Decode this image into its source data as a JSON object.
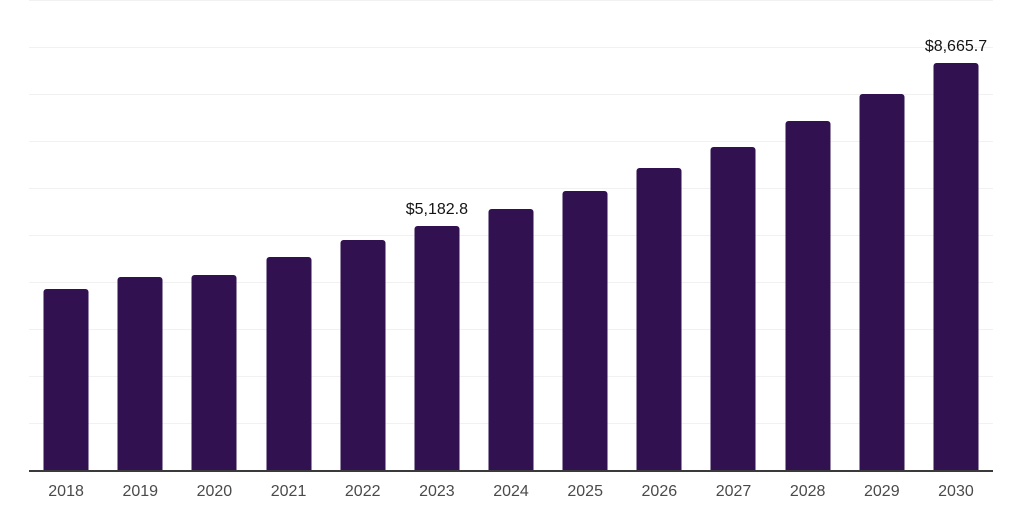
{
  "chart_data": {
    "type": "bar",
    "title": "",
    "xlabel": "",
    "ylabel": "",
    "categories": [
      "2018",
      "2019",
      "2020",
      "2021",
      "2022",
      "2023",
      "2024",
      "2025",
      "2026",
      "2027",
      "2028",
      "2029",
      "2030"
    ],
    "values": [
      3850,
      4100,
      4145,
      4525,
      4885,
      5182.8,
      5560,
      5940,
      6425,
      6870,
      7420,
      8010,
      8665.7
    ],
    "bar_labels": {
      "2023": "$5,182.8",
      "2030": "$8,665.7"
    },
    "ylim": [
      0,
      10000
    ],
    "gridline_step": 1000,
    "grid": true,
    "legend": false,
    "colors": {
      "bar": "#321150",
      "grid": "#f1f1f1",
      "axis_line": "#3a3a3a",
      "tick_label": "#4a4a4a",
      "data_label": "#141414",
      "background": "#ffffff"
    }
  }
}
